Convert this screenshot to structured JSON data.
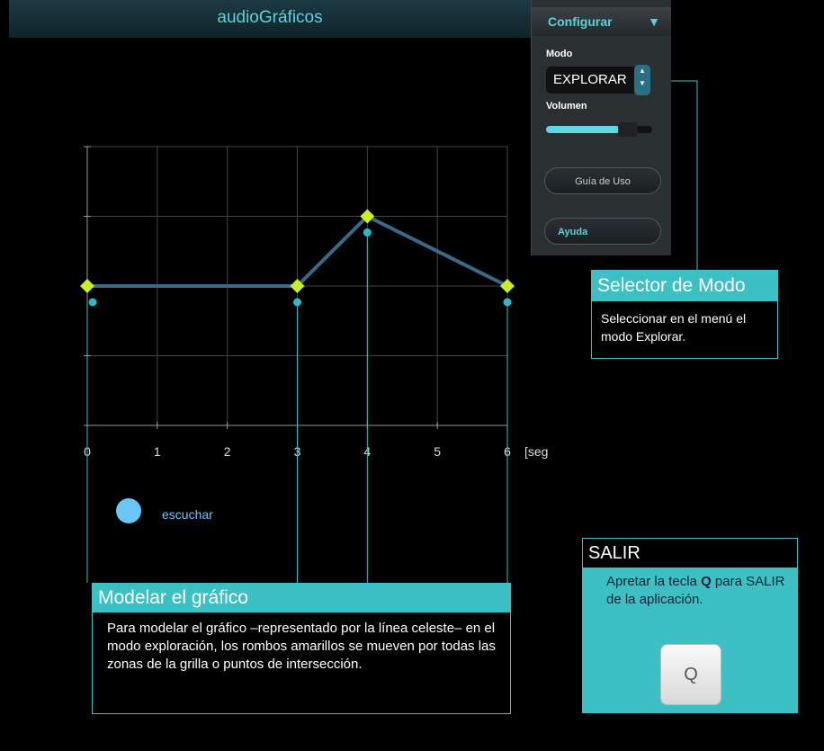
{
  "app_title": "audioGráficos",
  "config_panel": {
    "header": "Configurar",
    "mode_label": "Modo",
    "mode_value": "EXPLORAR",
    "volume_label": "Volumen",
    "guide_button": "Guía de Uso",
    "help_button": "Ayuda"
  },
  "mode_callout": {
    "title": "Selector de Modo",
    "body": "Seleccionar en el menú el modo Explorar."
  },
  "model_callout": {
    "title": "Modelar el gráfico",
    "body": "Para modelar el gráfico –representado por la línea celeste– en el modo exploración, los rombos amarillos se mueven por todas las zonas de la grilla o puntos de intersección."
  },
  "exit_callout": {
    "title": "SALIR",
    "body_before": "Apretar la tecla",
    "key": "Q",
    "body_after": "para SALIR de la aplicación.",
    "key_cap": "Q"
  },
  "listen_label": "escuchar",
  "chart_data": {
    "type": "line",
    "x_label": "[seg",
    "x": [
      0,
      3,
      4,
      6
    ],
    "series": [
      {
        "color": "#3a6a8a",
        "marker_color": "#c8ef2a",
        "values": [
          2,
          2,
          3,
          2
        ]
      }
    ],
    "xlim": [
      0,
      6
    ],
    "xticks": [
      0,
      1,
      2,
      3,
      4,
      5,
      6
    ],
    "ylim": [
      0,
      4
    ],
    "yticks": [
      0,
      1,
      2,
      3,
      4
    ],
    "grid": true
  }
}
